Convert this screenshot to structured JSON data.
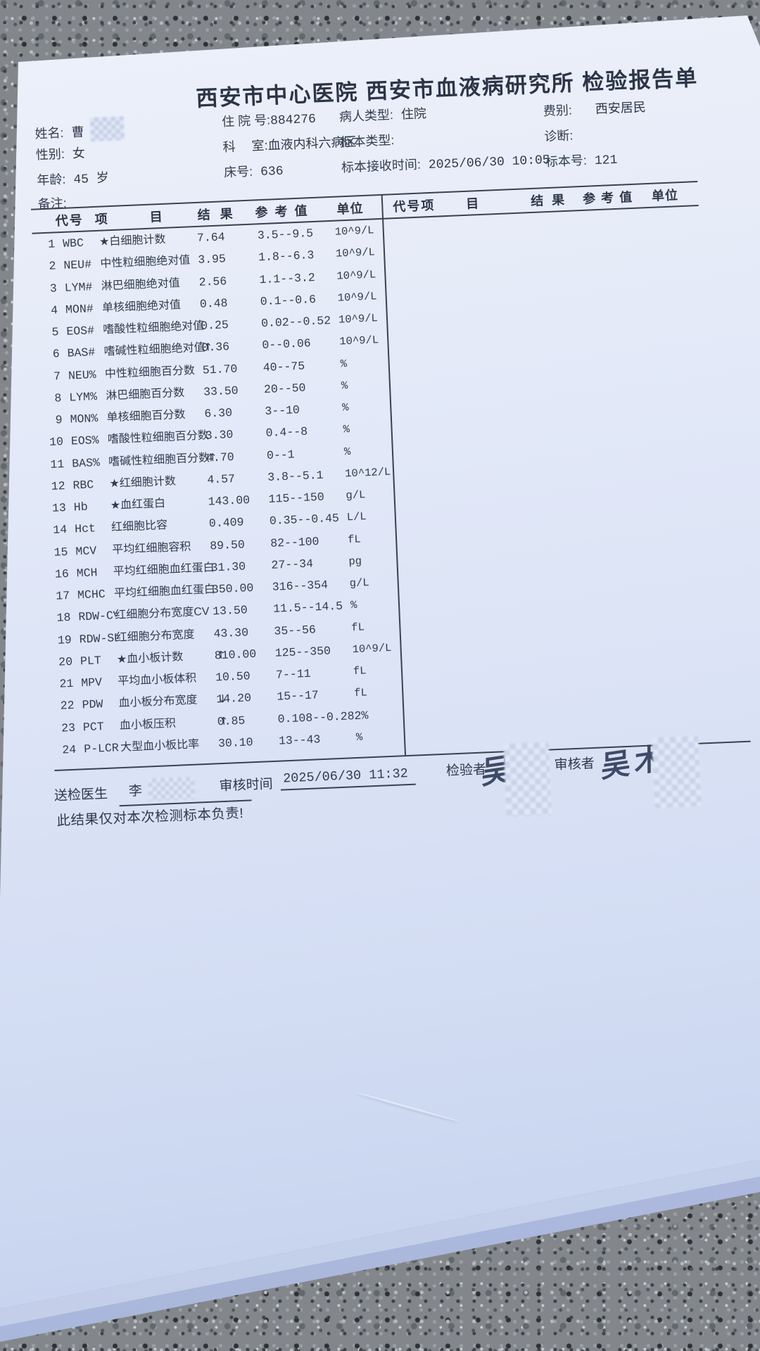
{
  "header": {
    "title": "西安市中心医院 西安市血液病研究所 检验报告单"
  },
  "patient": {
    "name_label": "姓名:",
    "name_value": "曹",
    "sex_label": "性别:",
    "sex_value": "女",
    "age_label": "年龄:",
    "age_value": "45 岁",
    "remark_label": "备注:",
    "admission_label": "住 院 号:",
    "admission_value": "884276",
    "dept_label": "科　 室:",
    "dept_value": "血液内科六病区",
    "bed_label": "床号:",
    "bed_value": "636",
    "patient_type_label": "病人类型:",
    "patient_type_value": "住院",
    "specimen_type_label": "标本类型:",
    "specimen_type_value": "",
    "received_label": "标本接收时间:",
    "received_value": "2025/06/30 10:05",
    "fee_label": "费别:",
    "fee_value": "西安居民",
    "diagnosis_label": "诊断:",
    "diagnosis_value": "",
    "specimen_no_label": "标本号:",
    "specimen_no_value": "121"
  },
  "table": {
    "headers": [
      "代号",
      "项目",
      "结果",
      "参考值",
      "单位"
    ],
    "rows": [
      {
        "no": "1",
        "code": "WBC",
        "item": "★白细胞计数",
        "result": "7.64",
        "flag": "",
        "ref": "3.5--9.5",
        "unit": "10^9/L"
      },
      {
        "no": "2",
        "code": "NEU#",
        "item": "中性粒细胞绝对值",
        "result": "3.95",
        "flag": "",
        "ref": "1.8--6.3",
        "unit": "10^9/L"
      },
      {
        "no": "3",
        "code": "LYM#",
        "item": "淋巴细胞绝对值",
        "result": "2.56",
        "flag": "",
        "ref": "1.1--3.2",
        "unit": "10^9/L"
      },
      {
        "no": "4",
        "code": "MON#",
        "item": "单核细胞绝对值",
        "result": "0.48",
        "flag": "",
        "ref": "0.1--0.6",
        "unit": "10^9/L"
      },
      {
        "no": "5",
        "code": "EOS#",
        "item": "嗜酸性粒细胞绝对值",
        "result": "0.25",
        "flag": "",
        "ref": "0.02--0.52",
        "unit": "10^9/L"
      },
      {
        "no": "6",
        "code": "BAS#",
        "item": "嗜碱性粒细胞绝对值",
        "result": "0.36",
        "flag": "↑",
        "ref": "0--0.06",
        "unit": "10^9/L"
      },
      {
        "no": "7",
        "code": "NEU%",
        "item": "中性粒细胞百分数",
        "result": "51.70",
        "flag": "",
        "ref": "40--75",
        "unit": "%"
      },
      {
        "no": "8",
        "code": "LYM%",
        "item": "淋巴细胞百分数",
        "result": "33.50",
        "flag": "",
        "ref": "20--50",
        "unit": "%"
      },
      {
        "no": "9",
        "code": "MON%",
        "item": "单核细胞百分数",
        "result": "6.30",
        "flag": "",
        "ref": "3--10",
        "unit": "%"
      },
      {
        "no": "10",
        "code": "EOS%",
        "item": "嗜酸性粒细胞百分数",
        "result": "3.30",
        "flag": "",
        "ref": "0.4--8",
        "unit": "%"
      },
      {
        "no": "11",
        "code": "BAS%",
        "item": "嗜碱性粒细胞百分数",
        "result": "4.70",
        "flag": "↑",
        "ref": "0--1",
        "unit": "%"
      },
      {
        "no": "12",
        "code": "RBC",
        "item": "★红细胞计数",
        "result": "4.57",
        "flag": "",
        "ref": "3.8--5.1",
        "unit": "10^12/L"
      },
      {
        "no": "13",
        "code": "Hb",
        "item": "★血红蛋白",
        "result": "143.00",
        "flag": "",
        "ref": "115--150",
        "unit": "g/L"
      },
      {
        "no": "14",
        "code": "Hct",
        "item": "红细胞比容",
        "result": "0.409",
        "flag": "",
        "ref": "0.35--0.45",
        "unit": "L/L"
      },
      {
        "no": "15",
        "code": "MCV",
        "item": "平均红细胞容积",
        "result": "89.50",
        "flag": "",
        "ref": "82--100",
        "unit": "fL"
      },
      {
        "no": "16",
        "code": "MCH",
        "item": "平均红细胞血红蛋白",
        "result": "31.30",
        "flag": "",
        "ref": "27--34",
        "unit": "pg"
      },
      {
        "no": "17",
        "code": "MCHC",
        "item": "平均红细胞血红蛋白",
        "result": "350.00",
        "flag": "",
        "ref": "316--354",
        "unit": "g/L"
      },
      {
        "no": "18",
        "code": "RDW-CV",
        "item": "红细胞分布宽度CV",
        "result": "13.50",
        "flag": "",
        "ref": "11.5--14.5",
        "unit": "%"
      },
      {
        "no": "19",
        "code": "RDW-SD",
        "item": "红细胞分布宽度",
        "result": "43.30",
        "flag": "",
        "ref": "35--56",
        "unit": "fL"
      },
      {
        "no": "20",
        "code": "PLT",
        "item": "★血小板计数",
        "result": "810.00",
        "flag": "↑",
        "ref": "125--350",
        "unit": "10^9/L"
      },
      {
        "no": "21",
        "code": "MPV",
        "item": "平均血小板体积",
        "result": "10.50",
        "flag": "",
        "ref": "7--11",
        "unit": "fL"
      },
      {
        "no": "22",
        "code": "PDW",
        "item": "血小板分布宽度",
        "result": "14.20",
        "flag": "↓",
        "ref": "15--17",
        "unit": "fL"
      },
      {
        "no": "23",
        "code": "PCT",
        "item": "血小板压积",
        "result": "0.85",
        "flag": "↑",
        "ref": "0.108--0.282%",
        "unit": ""
      },
      {
        "no": "24",
        "code": "P-LCR",
        "item": "大型血小板比率",
        "result": "30.10",
        "flag": "",
        "ref": "13--43",
        "unit": "%"
      }
    ]
  },
  "footer": {
    "doctor_label": "送检医生",
    "doctor_value": "李",
    "review_time_label": "审核时间",
    "review_time_value": "2025/06/30 11:32",
    "examiner_label": "检验者",
    "examiner_signature": "吴",
    "reviewer_label": "审核者",
    "reviewer_signature": "吴木",
    "note": "此结果仅对本次检测标本负责!"
  }
}
